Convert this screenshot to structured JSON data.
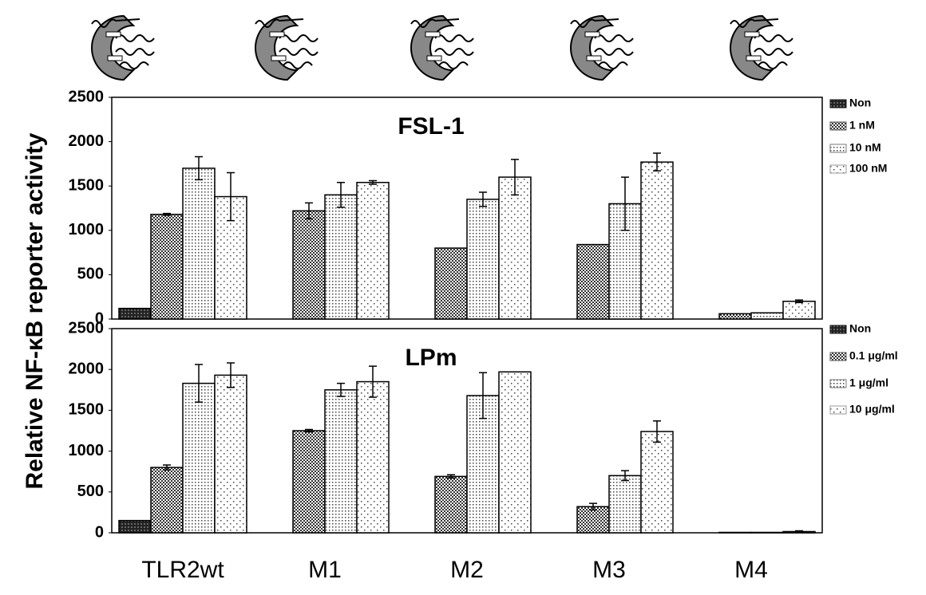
{
  "chart_data": [
    {
      "type": "bar",
      "title": "FSL-1",
      "ylabel": "Relative NF-κB reporter activity",
      "ylim": [
        0,
        2500
      ],
      "yticks": [
        0,
        500,
        1000,
        1500,
        2000,
        2500
      ],
      "series": [
        {
          "name": "Non",
          "color": "#111111",
          "values": [
            120,
            null,
            null,
            null,
            null
          ],
          "errors": [
            null,
            null,
            null,
            null,
            null
          ]
        },
        {
          "name": "1 nM",
          "color": "#555555",
          "values": [
            1180,
            1220,
            800,
            840,
            60
          ],
          "errors": [
            10,
            90,
            null,
            null,
            null
          ]
        },
        {
          "name": "10 nM",
          "color": "#777777",
          "values": [
            1700,
            1400,
            1350,
            1300,
            70
          ],
          "errors": [
            130,
            140,
            80,
            300,
            null
          ]
        },
        {
          "name": "100 nM",
          "color": "#999999",
          "values": [
            1380,
            1540,
            1600,
            1770,
            200
          ],
          "errors": [
            270,
            20,
            200,
            100,
            15
          ]
        }
      ]
    },
    {
      "type": "bar",
      "title": "LPm",
      "categories": [
        "TLR2wt",
        "M1",
        "M2",
        "M3",
        "M4"
      ],
      "ylim": [
        0,
        2500
      ],
      "yticks": [
        0,
        500,
        1000,
        1500,
        2000,
        2500
      ],
      "series": [
        {
          "name": "Non",
          "color": "#111111",
          "values": [
            150,
            null,
            null,
            null,
            null
          ],
          "errors": [
            null,
            null,
            null,
            null,
            null
          ]
        },
        {
          "name": "0.1 μg/ml",
          "color": "#555555",
          "values": [
            800,
            1250,
            690,
            320,
            5
          ],
          "errors": [
            30,
            15,
            20,
            40,
            null
          ]
        },
        {
          "name": "1 μg/ml",
          "color": "#777777",
          "values": [
            1830,
            1750,
            1680,
            700,
            5
          ],
          "errors": [
            230,
            80,
            280,
            60,
            null
          ]
        },
        {
          "name": "10 μg/ml",
          "color": "#999999",
          "values": [
            1930,
            1850,
            1970,
            1240,
            15
          ],
          "errors": [
            150,
            190,
            null,
            130,
            10
          ]
        }
      ]
    }
  ]
}
